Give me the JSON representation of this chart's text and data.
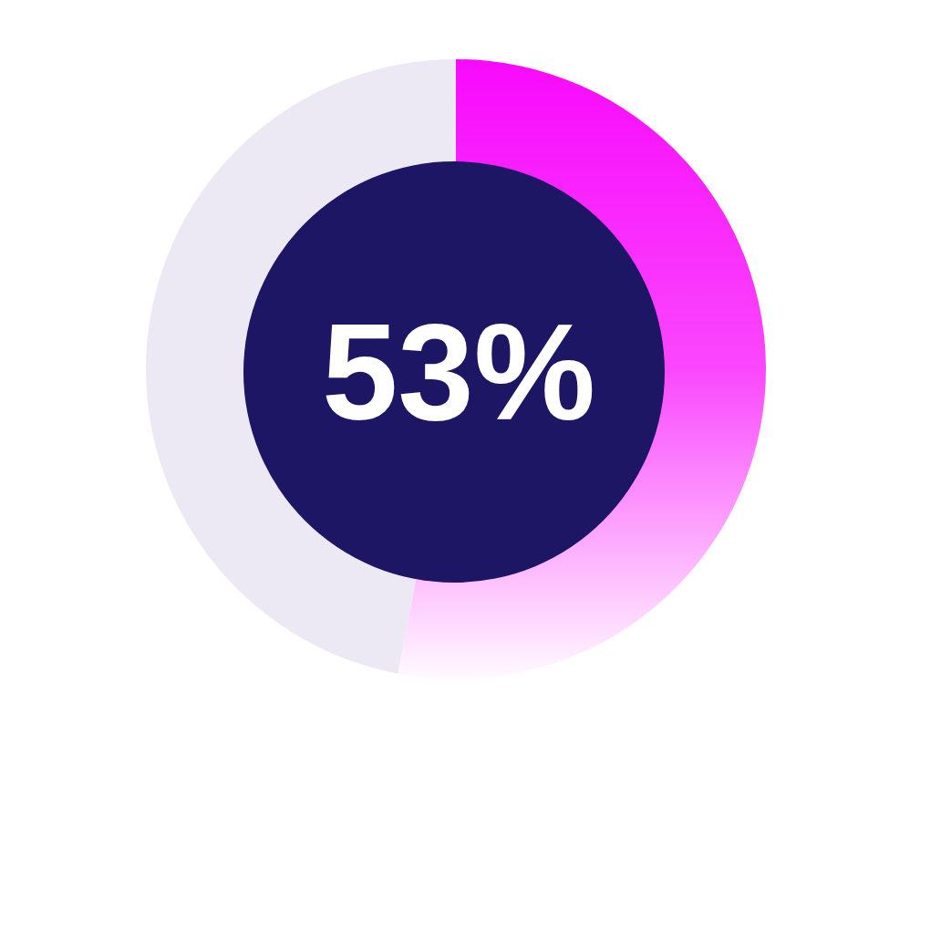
{
  "chart_data": {
    "type": "pie",
    "categories": [
      null,
      null
    ],
    "values": [
      53,
      47
    ],
    "colors": [
      "#f80afc",
      "#ece9f4"
    ],
    "value_labels": [
      "53%",
      null
    ]
  }
}
